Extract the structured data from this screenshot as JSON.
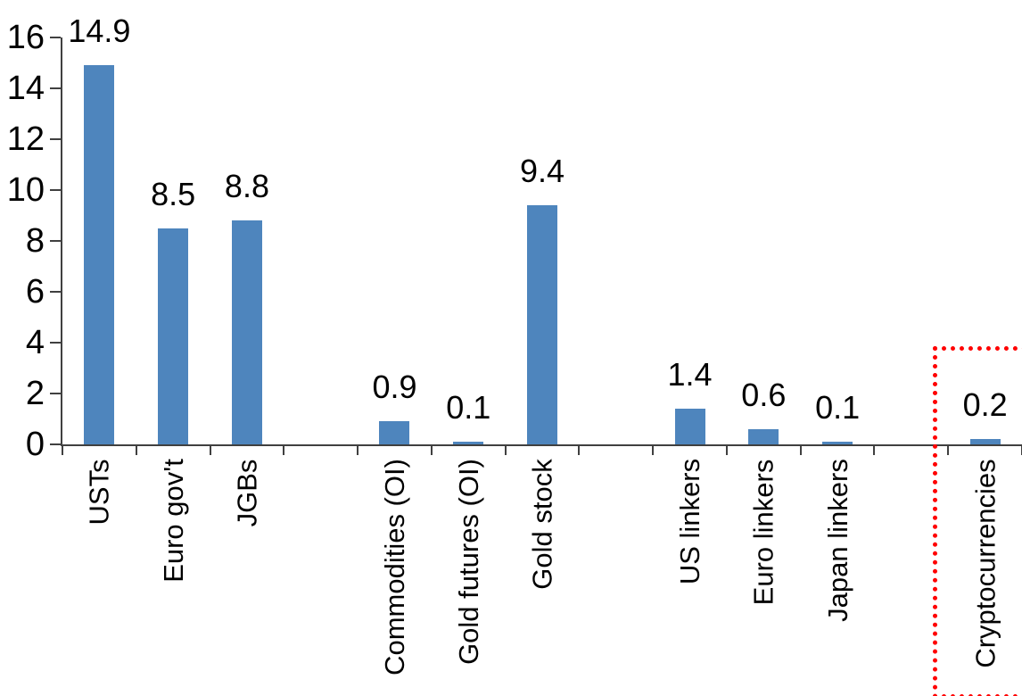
{
  "chart_data": {
    "type": "bar",
    "title": "",
    "xlabel": "",
    "ylabel": "",
    "categories": [
      "USTs",
      "Euro gov't",
      "JGBs",
      "Commodities (OI)",
      "Gold futures (OI)",
      "Gold stock",
      "US linkers",
      "Euro linkers",
      "Japan linkers",
      "Cryptocurrencies"
    ],
    "values": [
      14.9,
      8.5,
      8.8,
      0.9,
      0.1,
      9.4,
      1.4,
      0.6,
      0.1,
      0.2
    ],
    "value_labels": [
      "14.9",
      "8.5",
      "8.8",
      "0.9",
      "0.1",
      "9.4",
      "1.4",
      "0.6",
      "0.1",
      "0.2"
    ],
    "groups": [
      [
        "USTs",
        "Euro gov't",
        "JGBs"
      ],
      [
        "Commodities (OI)",
        "Gold futures (OI)",
        "Gold stock"
      ],
      [
        "US linkers",
        "Euro linkers",
        "Japan linkers"
      ],
      [
        "Cryptocurrencies"
      ]
    ],
    "slot_order": [
      "USTs",
      "Euro gov't",
      "JGBs",
      null,
      "Commodities (OI)",
      "Gold futures (OI)",
      "Gold stock",
      null,
      "US linkers",
      "Euro linkers",
      "Japan linkers",
      null,
      "Cryptocurrencies"
    ],
    "ylim": [
      0,
      16
    ],
    "yticks": [
      0,
      2,
      4,
      6,
      8,
      10,
      12,
      14,
      16
    ],
    "grid": false,
    "legend": "none",
    "x_labels_rotation_degrees": -90,
    "bar_color": "#4E85BD",
    "axis_color": "#404040",
    "text_color": "#000000",
    "highlight": {
      "category": "Cryptocurrencies",
      "box_color": "#FF0000",
      "box_style": "dotted"
    }
  }
}
